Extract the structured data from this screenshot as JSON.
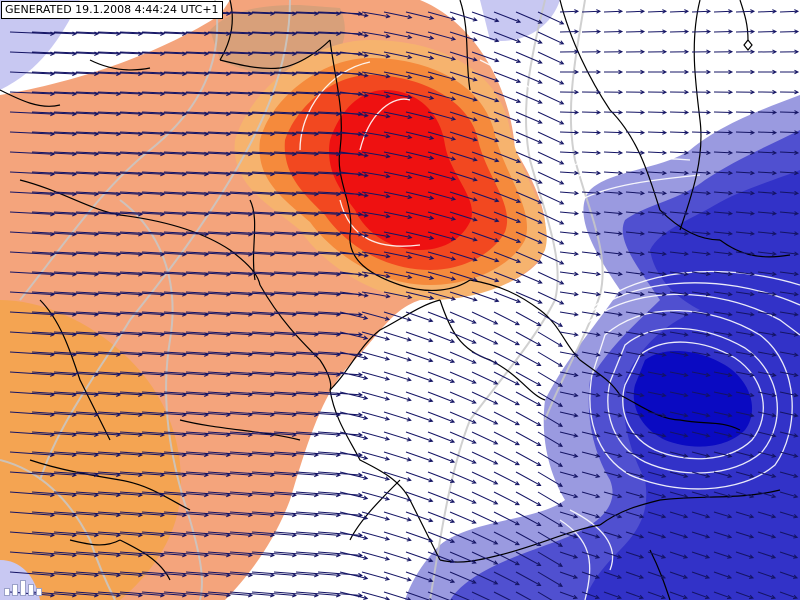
{
  "map": {
    "generated_stamp": "GENERATED 19.1.2008 4:44:24 UTC+1",
    "logo": "logo-icon",
    "colors": {
      "background": "#ffffff",
      "orange_light": "#f4a47c",
      "orange_mid": "#f4a452",
      "warm_brown": "#d8a07a",
      "red_core": "#ee1111",
      "red_band": "#f24820",
      "blue_pale": "#c8c8f2",
      "blue_light": "#9a9ae0",
      "blue_mid": "#3232c8",
      "blue_core": "#0a0ac2",
      "isoline": "#c8c8c8",
      "isoline_white": "#ffffff",
      "border": "#000000",
      "wind_arrow": "#141464"
    }
  }
}
